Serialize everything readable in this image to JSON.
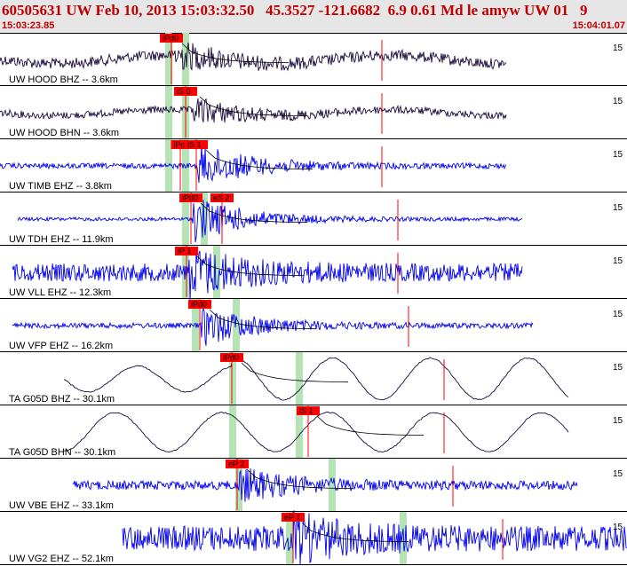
{
  "header": {
    "title": "60505631 UW Feb 10, 2013 15:03:32.50   45.3527 -121.6682  6.9 0.61 Md le amyw UW 01   9",
    "time_start": "15:03:23.85",
    "time_end": "15:04:01.07"
  },
  "colors": {
    "header_text": "#c00000",
    "trace_dark": "#1a0a3c",
    "trace_blue": "#0000ee",
    "pick_red": "#ff0000",
    "window_green": "#b5e3b5",
    "coda_line": "#000000"
  },
  "channels": [
    {
      "label": "UW HOOD BHZ -- 3.6km",
      "trace_color": "dark",
      "edge_label": "15",
      "picks": [
        "iPd0"
      ]
    },
    {
      "label": "UW HOOD BHN -- 3.6km",
      "trace_color": "dark",
      "edge_label": "15",
      "picks": [
        "iS 0"
      ]
    },
    {
      "label": "UW TIMB EHZ -- 3.8km",
      "trace_color": "blue",
      "edge_label": "15",
      "picks": [
        "iPc",
        "iS 1"
      ]
    },
    {
      "label": "UW TDH EHZ -- 11.9km",
      "trace_color": "blue",
      "edge_label": "15",
      "picks": [
        "iPd0",
        "eS 2"
      ]
    },
    {
      "label": "UW VLL EHZ -- 12.3km",
      "trace_color": "blue",
      "edge_label": "15",
      "picks": [
        "iP 1"
      ]
    },
    {
      "label": "UW VFP EHZ -- 16.2km",
      "trace_color": "blue",
      "edge_label": "15",
      "picks": [
        "iPd0"
      ]
    },
    {
      "label": "TA G05D BHZ -- 30.1km",
      "trace_color": "dark",
      "edge_label": "15",
      "picks": [
        "iPd0"
      ]
    },
    {
      "label": "TA G05D BHN -- 30.1km",
      "trace_color": "dark",
      "edge_label": "15",
      "picks": [
        "iS 1"
      ]
    },
    {
      "label": "UW VBE EHZ -- 33.1km",
      "trace_color": "blue",
      "edge_label": "15",
      "picks": [
        "eP 2"
      ]
    },
    {
      "label": "UW VG2 EHZ -- 52.1km",
      "trace_color": "blue",
      "edge_label": "15",
      "picks": [
        "eP 1"
      ]
    }
  ]
}
